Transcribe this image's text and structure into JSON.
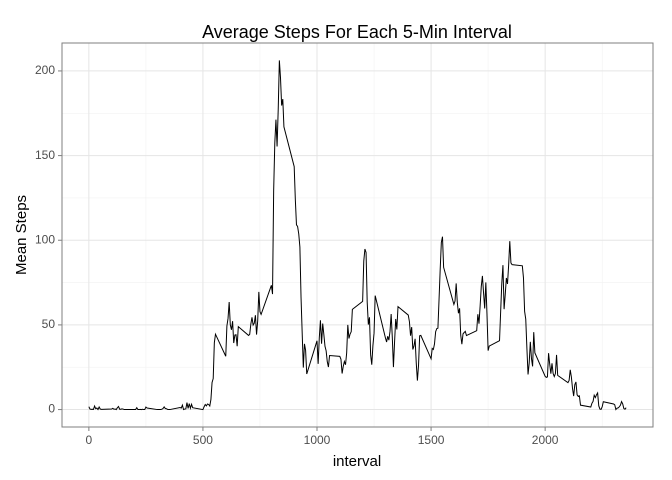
{
  "chart_data": {
    "type": "line",
    "title": "Average Steps For Each 5-Min Interval",
    "x_label": "interval",
    "y_label": "Mean Steps",
    "xlim": [
      -117.75,
      2472.75
    ],
    "ylim": [
      -10.3,
      216.5
    ],
    "xticks": [
      0,
      500,
      1000,
      1500,
      2000
    ],
    "yticks": [
      0,
      50,
      100,
      150,
      200
    ],
    "xminor": [
      250,
      750,
      1250,
      1750,
      2250
    ],
    "yminor": [
      25,
      75,
      125,
      175
    ],
    "grid": true,
    "series": [
      {
        "name": "mean steps",
        "color": "#000000",
        "x": [
          0,
          5,
          10,
          15,
          20,
          25,
          30,
          35,
          40,
          45,
          50,
          55,
          100,
          105,
          110,
          115,
          120,
          125,
          130,
          135,
          140,
          145,
          150,
          155,
          200,
          205,
          210,
          215,
          220,
          225,
          230,
          235,
          240,
          245,
          250,
          255,
          300,
          305,
          310,
          315,
          320,
          325,
          330,
          335,
          340,
          345,
          350,
          355,
          400,
          405,
          410,
          415,
          420,
          425,
          430,
          435,
          440,
          445,
          450,
          455,
          500,
          505,
          510,
          515,
          520,
          525,
          530,
          535,
          540,
          545,
          550,
          555,
          600,
          605,
          610,
          615,
          620,
          625,
          630,
          635,
          640,
          645,
          650,
          655,
          700,
          705,
          710,
          715,
          720,
          725,
          730,
          735,
          740,
          745,
          750,
          755,
          800,
          805,
          810,
          815,
          820,
          825,
          830,
          835,
          840,
          845,
          850,
          855,
          900,
          905,
          910,
          915,
          920,
          925,
          930,
          935,
          940,
          945,
          950,
          955,
          1000,
          1005,
          1010,
          1015,
          1020,
          1025,
          1030,
          1035,
          1040,
          1045,
          1050,
          1055,
          1100,
          1105,
          1110,
          1115,
          1120,
          1125,
          1130,
          1135,
          1140,
          1145,
          1150,
          1155,
          1200,
          1205,
          1210,
          1215,
          1220,
          1225,
          1230,
          1235,
          1240,
          1245,
          1250,
          1255,
          1300,
          1305,
          1310,
          1315,
          1320,
          1325,
          1330,
          1335,
          1340,
          1345,
          1350,
          1355,
          1400,
          1405,
          1410,
          1415,
          1420,
          1425,
          1430,
          1435,
          1440,
          1445,
          1450,
          1455,
          1500,
          1505,
          1510,
          1515,
          1520,
          1525,
          1530,
          1535,
          1540,
          1545,
          1550,
          1555,
          1600,
          1605,
          1610,
          1615,
          1620,
          1625,
          1630,
          1635,
          1640,
          1645,
          1650,
          1655,
          1700,
          1705,
          1710,
          1715,
          1720,
          1725,
          1730,
          1735,
          1740,
          1745,
          1750,
          1755,
          1800,
          1805,
          1810,
          1815,
          1820,
          1825,
          1830,
          1835,
          1840,
          1845,
          1850,
          1855,
          1900,
          1905,
          1910,
          1915,
          1920,
          1925,
          1930,
          1935,
          1940,
          1945,
          1950,
          1955,
          2000,
          2005,
          2010,
          2015,
          2020,
          2025,
          2030,
          2035,
          2040,
          2045,
          2050,
          2055,
          2100,
          2105,
          2110,
          2115,
          2120,
          2125,
          2130,
          2135,
          2140,
          2145,
          2150,
          2155,
          2200,
          2205,
          2210,
          2215,
          2220,
          2225,
          2230,
          2235,
          2240,
          2245,
          2250,
          2255,
          2300,
          2305,
          2310,
          2315,
          2320,
          2325,
          2330,
          2335,
          2340,
          2345,
          2350,
          2355
        ],
        "values": [
          1.7,
          0.3,
          0.1,
          0.2,
          0.1,
          2.1,
          0.5,
          0.9,
          0,
          1.5,
          0.3,
          0.1,
          0.3,
          0.7,
          0.2,
          0.3,
          0,
          1.1,
          1.8,
          0.2,
          0.2,
          0.4,
          0.3,
          0,
          0,
          0,
          1.1,
          0,
          0,
          0.1,
          0,
          0.2,
          0,
          0,
          1.5,
          0.9,
          0,
          0,
          0,
          0,
          0.2,
          0.6,
          1.6,
          0.6,
          0.5,
          0.1,
          0,
          0,
          1.2,
          0.9,
          2.6,
          0,
          0.3,
          0.4,
          4.1,
          0.7,
          3.5,
          0.8,
          3.1,
          1.1,
          0,
          1.6,
          3,
          2.2,
          3.3,
          3,
          2.1,
          6,
          16,
          18.3,
          39.5,
          44.5,
          31.5,
          49.3,
          53.8,
          63.5,
          50,
          47.1,
          52.2,
          39.3,
          44,
          44.2,
          37.4,
          49,
          43.8,
          44.4,
          50.5,
          54.5,
          49.9,
          51,
          55.7,
          44.3,
          52.3,
          69.5,
          57.8,
          56.2,
          73.4,
          68.2,
          129.4,
          157.5,
          171.2,
          155.4,
          177.3,
          206.2,
          195.9,
          179.6,
          183.4,
          167,
          143.5,
          124,
          109.1,
          108.1,
          103.7,
          96,
          66.2,
          45.2,
          24.8,
          38.8,
          35,
          21,
          40.6,
          27,
          42.4,
          52.7,
          38.9,
          50.8,
          44.3,
          37.4,
          34.7,
          28.3,
          25.1,
          31.9,
          31.4,
          29.7,
          21.3,
          25.5,
          28.4,
          26.5,
          33.4,
          50,
          42,
          44.6,
          46,
          59.2,
          63.9,
          87.7,
          94.8,
          92.8,
          63.4,
          50.2,
          54.5,
          32.4,
          26.5,
          37.7,
          45.1,
          67.3,
          42.3,
          39.9,
          43.3,
          41,
          46.2,
          56.4,
          42.8,
          25.1,
          40,
          53.5,
          47.3,
          60.8,
          55.8,
          52,
          43.6,
          48.7,
          35.5,
          37.5,
          41.8,
          27.5,
          17.1,
          26.1,
          43.6,
          43.8,
          30,
          36.1,
          35.5,
          38.8,
          46,
          47.8,
          48.1,
          65.3,
          82.9,
          98.7,
          102.1,
          84,
          62.1,
          64.1,
          74.5,
          63.2,
          56.9,
          59.8,
          43.9,
          38.6,
          44.7,
          45.5,
          46.2,
          43.7,
          46.6,
          56.3,
          50.7,
          61.2,
          72.7,
          78.9,
          68.9,
          59.7,
          75.1,
          56.5,
          34.8,
          37.5,
          40.7,
          58,
          74.7,
          85.3,
          59.3,
          67.8,
          77.7,
          74.2,
          85.3,
          99.5,
          86.6,
          85.6,
          84.9,
          77.8,
          58,
          53.4,
          36.3,
          20.7,
          27.4,
          40,
          30.2,
          25.5,
          45.7,
          33.5,
          19.6,
          19,
          19.3,
          33.3,
          26.8,
          21.2,
          27.3,
          21.3,
          19.5,
          21.3,
          32.3,
          20.2,
          15.9,
          17.2,
          23.5,
          19.2,
          12.5,
          8,
          14.7,
          16.3,
          8.7,
          7.8,
          8.1,
          2.6,
          1.5,
          3.7,
          4.8,
          8.5,
          7.1,
          8.7,
          9.8,
          2.2,
          0.3,
          0.1,
          1.6,
          4.6,
          3.3,
          2.8,
          0,
          0.8,
          1,
          1.6,
          2.6,
          4.7,
          3.3,
          0.6,
          0.2,
          1.1
        ]
      }
    ]
  }
}
